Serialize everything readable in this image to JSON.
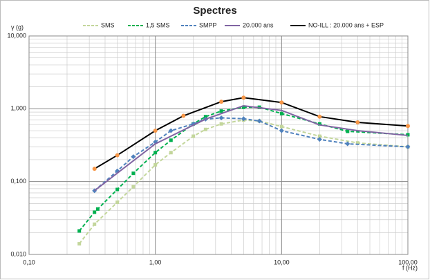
{
  "chart_data": {
    "type": "line",
    "title": "Spectres",
    "x_label": "f (Hz)",
    "y_label": "γ (g)",
    "xscale": "log",
    "yscale": "log",
    "grid": true,
    "minor_grid": true,
    "legend": "top",
    "xlim": [
      0.1,
      100
    ],
    "ylim": [
      0.01,
      10
    ],
    "xticks": [
      {
        "value": 0.1,
        "label": "0,10"
      },
      {
        "value": 1,
        "label": "1,00"
      },
      {
        "value": 10,
        "label": "10,00"
      },
      {
        "value": 100,
        "label": "100,00"
      }
    ],
    "yticks": [
      {
        "value": 0.01,
        "label": "0,010"
      },
      {
        "value": 0.1,
        "label": "0,100"
      },
      {
        "value": 1,
        "label": "1,000"
      },
      {
        "value": 10,
        "label": "10,000"
      }
    ],
    "series": [
      {
        "name": "SMS",
        "color": "#c3d69b",
        "line_color": "#c3d69b",
        "dashed": true,
        "marker": "square",
        "x": [
          0.25,
          0.33,
          0.5,
          0.67,
          1,
          1.33,
          2,
          2.5,
          3.33,
          5,
          6.67,
          10,
          20,
          40,
          100
        ],
        "values": [
          0.014,
          0.026,
          0.052,
          0.085,
          0.17,
          0.25,
          0.42,
          0.52,
          0.62,
          0.7,
          0.68,
          0.57,
          0.42,
          0.34,
          0.3
        ]
      },
      {
        "name": "1,5 SMS",
        "color": "#00b050",
        "line_color": "#00b050",
        "dashed": true,
        "marker": "square",
        "x": [
          0.25,
          0.33,
          0.35,
          0.5,
          0.67,
          1,
          1.33,
          2,
          2.5,
          3.33,
          5,
          6.67,
          10,
          20,
          33.3,
          100
        ],
        "values": [
          0.021,
          0.038,
          0.042,
          0.078,
          0.13,
          0.25,
          0.37,
          0.62,
          0.78,
          0.93,
          1.05,
          1.05,
          0.86,
          0.62,
          0.49,
          0.44
        ]
      },
      {
        "name": "SMPP",
        "color": "#4f81bd",
        "line_color": "#4f81bd",
        "dashed": true,
        "marker": "diamond",
        "x": [
          0.33,
          0.5,
          0.67,
          1,
          1.33,
          2,
          2.5,
          3.33,
          5,
          6.67,
          10,
          20,
          33.3,
          100
        ],
        "values": [
          0.075,
          0.14,
          0.22,
          0.35,
          0.5,
          0.62,
          0.72,
          0.75,
          0.73,
          0.68,
          0.5,
          0.38,
          0.33,
          0.3
        ]
      },
      {
        "name": "20.000 ans",
        "color": "#8064a2",
        "line_color": "#8064a2",
        "dashed": false,
        "marker": "none",
        "x": [
          0.33,
          1,
          2.5,
          5,
          10,
          20,
          40,
          100
        ],
        "values": [
          0.075,
          0.33,
          0.72,
          1.1,
          0.95,
          0.6,
          0.5,
          0.43
        ]
      },
      {
        "name": "NO-ILL : 20.000 ans + ESP",
        "color": "#f79646",
        "line_color": "#000000",
        "dashed": false,
        "marker": "circle",
        "x": [
          0.33,
          0.5,
          1,
          1.67,
          3.33,
          5,
          10,
          20,
          40,
          100
        ],
        "values": [
          0.15,
          0.23,
          0.5,
          0.8,
          1.25,
          1.42,
          1.22,
          0.78,
          0.65,
          0.58
        ]
      }
    ]
  }
}
